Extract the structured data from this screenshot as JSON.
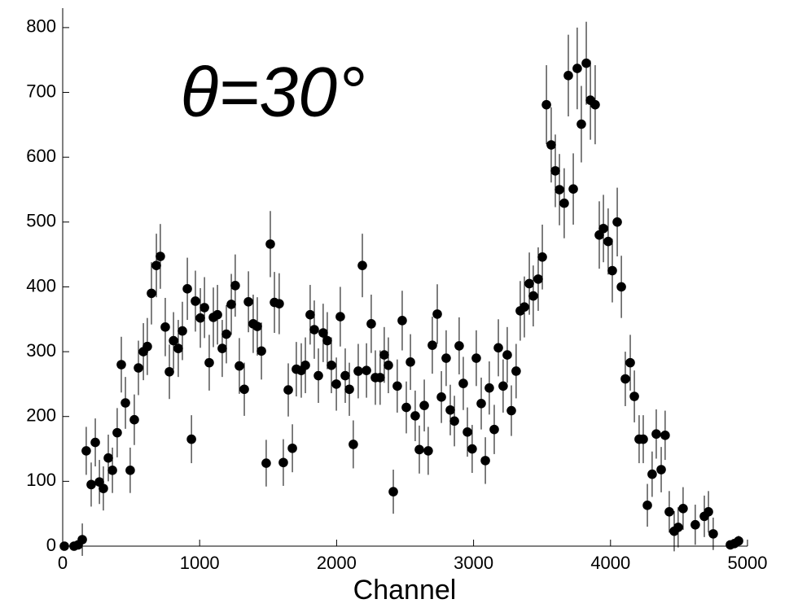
{
  "chart_data": {
    "type": "scatter",
    "annotation": "θ=30°",
    "xlabel": "Channel",
    "xlim": [
      0,
      5000
    ],
    "ylim": [
      0,
      830
    ],
    "xticks": [
      0,
      1000,
      2000,
      3000,
      4000,
      5000
    ],
    "yticks": [
      0,
      100,
      200,
      300,
      400,
      500,
      600,
      700,
      800
    ],
    "color": "#000000",
    "x": [
      12,
      83,
      113,
      143,
      172,
      208,
      238,
      268,
      297,
      333,
      363,
      398,
      428,
      458,
      493,
      523,
      553,
      589,
      618,
      648,
      684,
      713,
      749,
      779,
      809,
      844,
      874,
      910,
      940,
      969,
      1005,
      1035,
      1070,
      1100,
      1130,
      1165,
      1195,
      1231,
      1260,
      1290,
      1326,
      1356,
      1391,
      1421,
      1451,
      1486,
      1516,
      1546,
      1581,
      1611,
      1647,
      1677,
      1706,
      1742,
      1772,
      1807,
      1837,
      1867,
      1902,
      1932,
      1962,
      1998,
      2027,
      2063,
      2093,
      2122,
      2158,
      2188,
      2218,
      2253,
      2283,
      2318,
      2348,
      2378,
      2414,
      2443,
      2479,
      2509,
      2539,
      2574,
      2604,
      2640,
      2669,
      2699,
      2735,
      2765,
      2800,
      2830,
      2860,
      2895,
      2925,
      2955,
      2990,
      3020,
      3056,
      3086,
      3115,
      3151,
      3181,
      3216,
      3246,
      3276,
      3311,
      3341,
      3371,
      3407,
      3436,
      3472,
      3502,
      3532,
      3567,
      3597,
      3627,
      3662,
      3692,
      3728,
      3757,
      3787,
      3823,
      3853,
      3888,
      3918,
      3948,
      3983,
      4013,
      4049,
      4079,
      4108,
      4144,
      4174,
      4209,
      4239,
      4269,
      4304,
      4334,
      4370,
      4399,
      4429,
      4465,
      4494,
      4530,
      4619,
      4685,
      4715,
      4750,
      4875,
      4905,
      4935
    ],
    "y": [
      0,
      0,
      2,
      10,
      147,
      95,
      160,
      99,
      89,
      136,
      117,
      175,
      280,
      221,
      117,
      195,
      275,
      300,
      308,
      390,
      433,
      447,
      338,
      269,
      317,
      305,
      332,
      397,
      165,
      378,
      352,
      368,
      283,
      353,
      357,
      305,
      327,
      373,
      402,
      278,
      242,
      377,
      343,
      339,
      301,
      128,
      466,
      376,
      374,
      129,
      241,
      151,
      273,
      271,
      279,
      357,
      334,
      263,
      329,
      317,
      279,
      250,
      354,
      263,
      242,
      157,
      270,
      433,
      271,
      343,
      260,
      260,
      295,
      279,
      84,
      247,
      348,
      214,
      284,
      201,
      149,
      217,
      147,
      310,
      358,
      230,
      290,
      210,
      193,
      309,
      251,
      176,
      150,
      290,
      220,
      132,
      244,
      180,
      306,
      247,
      295,
      209,
      270,
      363,
      369,
      405,
      386,
      412,
      446,
      681,
      619,
      579,
      550,
      529,
      726,
      551,
      737,
      651,
      745,
      688,
      681,
      480,
      490,
      470,
      425,
      500,
      400,
      258,
      283,
      231,
      165,
      165,
      63,
      111,
      173,
      118,
      171,
      53,
      23,
      29,
      58,
      33,
      46,
      53,
      19,
      2,
      4,
      8
    ],
    "errors": [
      2,
      2,
      3,
      25,
      37,
      34,
      37,
      34,
      34,
      36,
      35,
      38,
      43,
      40,
      35,
      39,
      42,
      44,
      44,
      48,
      49,
      50,
      45,
      42,
      44,
      44,
      45,
      48,
      37,
      47,
      46,
      47,
      43,
      46,
      46,
      44,
      45,
      47,
      48,
      43,
      41,
      47,
      45,
      45,
      44,
      36,
      51,
      47,
      47,
      36,
      41,
      37,
      42,
      42,
      43,
      46,
      45,
      42,
      45,
      44,
      43,
      41,
      46,
      42,
      41,
      37,
      42,
      49,
      42,
      45,
      42,
      42,
      43,
      43,
      34,
      41,
      46,
      40,
      43,
      39,
      37,
      40,
      37,
      44,
      46,
      40,
      43,
      39,
      39,
      44,
      41,
      38,
      37,
      43,
      40,
      36,
      41,
      38,
      44,
      41,
      43,
      39,
      42,
      46,
      47,
      48,
      47,
      49,
      50,
      61,
      58,
      56,
      55,
      54,
      63,
      55,
      63,
      59,
      64,
      61,
      61,
      52,
      52,
      51,
      49,
      53,
      48,
      42,
      43,
      40,
      37,
      37,
      33,
      35,
      38,
      35,
      38,
      32,
      31,
      31,
      33,
      31,
      32,
      32,
      25,
      3,
      5,
      8
    ]
  }
}
